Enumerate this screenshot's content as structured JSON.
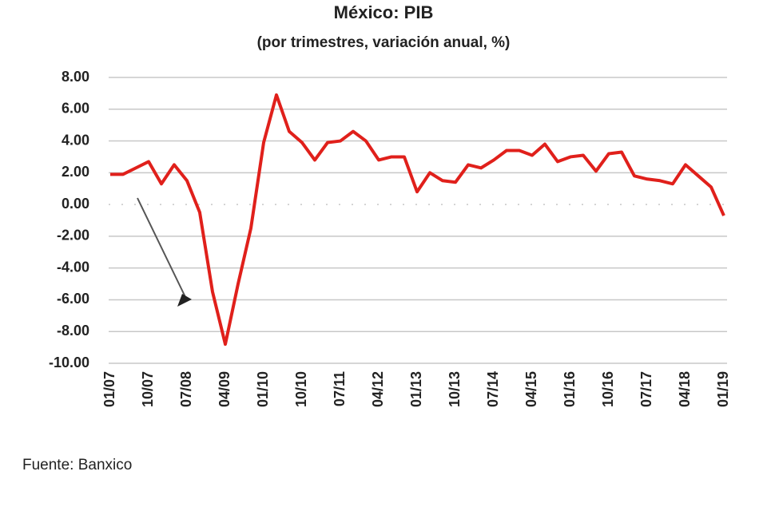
{
  "chart_data": {
    "type": "line",
    "title": "México: PIB",
    "subtitle": "(por trimestres, variación anual, %)",
    "categories": [
      "01/07",
      null,
      null,
      "10/07",
      null,
      null,
      "07/08",
      null,
      null,
      "04/09",
      null,
      null,
      "01/10",
      null,
      null,
      "10/10",
      null,
      null,
      "07/11",
      null,
      null,
      "04/12",
      null,
      null,
      "01/13",
      null,
      null,
      "10/13",
      null,
      null,
      "07/14",
      null,
      null,
      "04/15",
      null,
      null,
      "01/16",
      null,
      null,
      "10/16",
      null,
      null,
      "07/17",
      null,
      null,
      "04/18",
      null,
      null,
      "01/19"
    ],
    "values": [
      1.9,
      1.9,
      2.3,
      2.7,
      1.3,
      2.5,
      1.5,
      -0.5,
      -5.5,
      -8.8,
      -5.0,
      -1.5,
      3.9,
      6.9,
      4.6,
      3.9,
      2.8,
      3.9,
      4.0,
      4.6,
      4.0,
      2.8,
      3.0,
      3.0,
      0.8,
      2.0,
      1.5,
      1.4,
      2.5,
      2.3,
      2.8,
      3.4,
      3.4,
      3.1,
      3.8,
      2.7,
      3.0,
      3.1,
      2.1,
      3.2,
      3.3,
      1.8,
      1.6,
      1.5,
      1.3,
      2.5,
      1.8,
      1.1,
      -0.7
    ],
    "color": "#e0201b",
    "ylim": [
      -10,
      8
    ],
    "yticks": [
      {
        "value": -10,
        "label": "-10.00"
      },
      {
        "value": -8,
        "label": "-8.00"
      },
      {
        "value": -6,
        "label": "-6.00"
      },
      {
        "value": -4,
        "label": "-4.00"
      },
      {
        "value": -2,
        "label": "-2.00"
      },
      {
        "value": 0,
        "label": "0.00"
      },
      {
        "value": 2,
        "label": "2.00"
      },
      {
        "value": 4,
        "label": "4.00"
      },
      {
        "value": 6,
        "label": "6.00"
      },
      {
        "value": 8,
        "label": "8.00"
      }
    ],
    "grid": true,
    "source": "Fuente: Banxico"
  }
}
